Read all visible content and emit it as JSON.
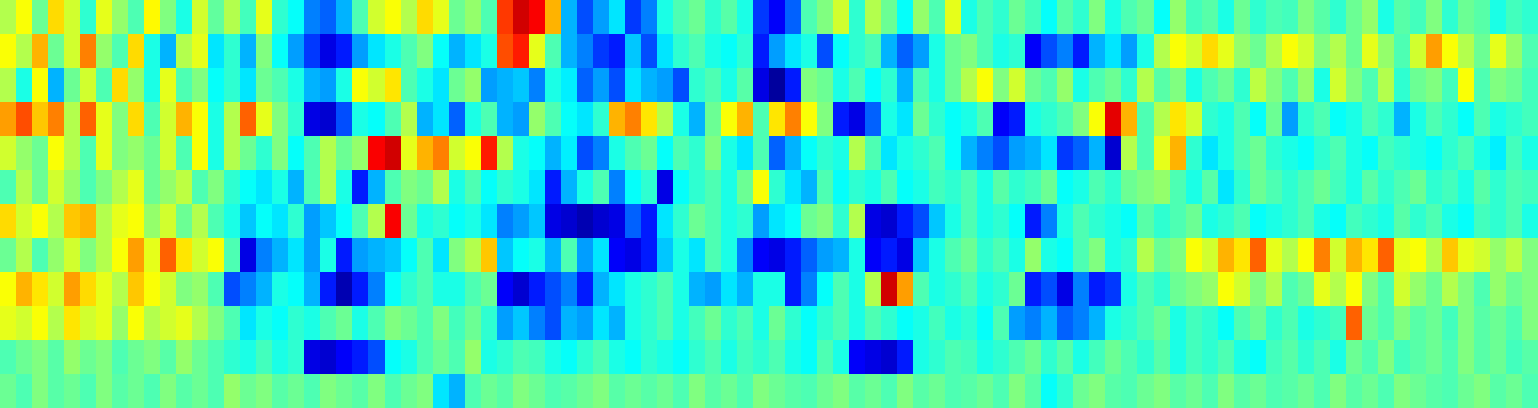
{
  "chart_data": {
    "type": "heatmap",
    "tick_labels": false,
    "zlim": [
      0,
      100
    ],
    "cells": [
      [
        55,
        62,
        48,
        66,
        58,
        42,
        60,
        52,
        45,
        63,
        50,
        40,
        58,
        47,
        55,
        44,
        60,
        42,
        38,
        25,
        22,
        30,
        45,
        58,
        62,
        55,
        66,
        60,
        48,
        52,
        45,
        82,
        92,
        88,
        70,
        30,
        20,
        28,
        35,
        18,
        25,
        40,
        45,
        48,
        42,
        46,
        40,
        18,
        12,
        22,
        45,
        50,
        58,
        42,
        55,
        48,
        38,
        52,
        45,
        60,
        40,
        45,
        42,
        48,
        44,
        38,
        46,
        42,
        50,
        40,
        45,
        48,
        38,
        52,
        44,
        46,
        40,
        48,
        42,
        45,
        44,
        50,
        46,
        42,
        48,
        52,
        40,
        46,
        44,
        50,
        42,
        48,
        46,
        40,
        44,
        42
      ],
      [
        62,
        55,
        70,
        48,
        58,
        75,
        52,
        45,
        66,
        40,
        30,
        55,
        60,
        35,
        42,
        30,
        50,
        38,
        28,
        18,
        10,
        15,
        28,
        35,
        40,
        45,
        50,
        38,
        30,
        35,
        40,
        80,
        85,
        60,
        45,
        30,
        25,
        18,
        15,
        32,
        20,
        35,
        42,
        45,
        40,
        38,
        42,
        15,
        28,
        35,
        40,
        20,
        38,
        42,
        45,
        30,
        22,
        28,
        40,
        48,
        50,
        45,
        40,
        42,
        12,
        20,
        25,
        15,
        30,
        35,
        28,
        40,
        55,
        62,
        58,
        66,
        60,
        52,
        48,
        55,
        62,
        58,
        50,
        55,
        48,
        60,
        52,
        45,
        58,
        72,
        62,
        55,
        48,
        60,
        52,
        45
      ],
      [
        55,
        40,
        62,
        30,
        48,
        58,
        45,
        66,
        52,
        40,
        60,
        45,
        50,
        38,
        42,
        35,
        48,
        45,
        40,
        30,
        28,
        40,
        62,
        58,
        65,
        45,
        40,
        35,
        48,
        52,
        28,
        30,
        32,
        25,
        40,
        36,
        22,
        28,
        20,
        35,
        30,
        28,
        20,
        42,
        45,
        40,
        46,
        10,
        3,
        15,
        50,
        48,
        40,
        45,
        38,
        42,
        30,
        45,
        40,
        48,
        55,
        62,
        50,
        58,
        48,
        45,
        52,
        40,
        45,
        48,
        42,
        55,
        46,
        50,
        40,
        45,
        48,
        42,
        56,
        50,
        45,
        52,
        40,
        58,
        50,
        45,
        55,
        42,
        48,
        50,
        44,
        62,
        45,
        50,
        48,
        44
      ],
      [
        72,
        80,
        68,
        75,
        55,
        78,
        60,
        50,
        66,
        45,
        58,
        70,
        62,
        40,
        55,
        78,
        60,
        50,
        42,
        10,
        8,
        20,
        40,
        38,
        45,
        55,
        30,
        35,
        22,
        40,
        45,
        30,
        28,
        52,
        45,
        38,
        35,
        42,
        70,
        75,
        65,
        55,
        40,
        30,
        48,
        62,
        70,
        45,
        65,
        75,
        62,
        50,
        15,
        10,
        22,
        40,
        35,
        48,
        42,
        38,
        40,
        45,
        12,
        15,
        40,
        42,
        45,
        50,
        62,
        90,
        70,
        45,
        55,
        65,
        58,
        42,
        40,
        45,
        38,
        48,
        28,
        42,
        45,
        38,
        40,
        45,
        42,
        30,
        40,
        45,
        42,
        38,
        45,
        40,
        42,
        44
      ],
      [
        58,
        52,
        48,
        62,
        55,
        45,
        60,
        50,
        52,
        48,
        58,
        45,
        62,
        40,
        55,
        48,
        42,
        50,
        38,
        45,
        55,
        48,
        52,
        88,
        92,
        60,
        70,
        75,
        58,
        62,
        85,
        55,
        40,
        38,
        30,
        36,
        20,
        25,
        40,
        45,
        48,
        38,
        45,
        42,
        50,
        40,
        35,
        45,
        22,
        30,
        38,
        42,
        40,
        55,
        45,
        35,
        40,
        42,
        45,
        38,
        30,
        25,
        20,
        28,
        30,
        35,
        18,
        22,
        30,
        8,
        55,
        45,
        60,
        70,
        42,
        35,
        40,
        45,
        48,
        42,
        40,
        38,
        42,
        45,
        40,
        38,
        44,
        42,
        40,
        38,
        42,
        45,
        40,
        36,
        44,
        40
      ],
      [
        45,
        55,
        48,
        58,
        52,
        45,
        50,
        55,
        60,
        48,
        52,
        56,
        45,
        50,
        42,
        38,
        35,
        40,
        30,
        45,
        55,
        40,
        15,
        30,
        45,
        50,
        48,
        55,
        40,
        45,
        38,
        42,
        40,
        35,
        15,
        30,
        40,
        45,
        25,
        38,
        42,
        10,
        38,
        42,
        45,
        40,
        48,
        62,
        42,
        35,
        30,
        45,
        38,
        42,
        40,
        45,
        38,
        40,
        44,
        42,
        45,
        40,
        46,
        42,
        44,
        48,
        38,
        40,
        45,
        42,
        48,
        50,
        52,
        45,
        40,
        46,
        35,
        42,
        48,
        45,
        42,
        45,
        48,
        44,
        40,
        46,
        42,
        45,
        48,
        42,
        44,
        40,
        46,
        42,
        45,
        44
      ],
      [
        66,
        58,
        62,
        55,
        68,
        70,
        55,
        60,
        62,
        52,
        58,
        48,
        55,
        45,
        40,
        32,
        38,
        35,
        42,
        28,
        32,
        38,
        45,
        55,
        88,
        48,
        40,
        42,
        38,
        40,
        35,
        25,
        28,
        32,
        10,
        8,
        5,
        8,
        10,
        22,
        15,
        35,
        42,
        48,
        45,
        40,
        42,
        28,
        35,
        38,
        48,
        50,
        42,
        55,
        10,
        8,
        15,
        20,
        32,
        40,
        45,
        40,
        42,
        38,
        15,
        25,
        40,
        45,
        42,
        40,
        38,
        46,
        42,
        45,
        48,
        40,
        42,
        45,
        38,
        40,
        42,
        45,
        40,
        38,
        44,
        42,
        40,
        46,
        42,
        45,
        40,
        38,
        44,
        42,
        45,
        40
      ],
      [
        48,
        55,
        45,
        52,
        58,
        50,
        55,
        62,
        72,
        60,
        78,
        65,
        58,
        62,
        45,
        10,
        25,
        30,
        35,
        28,
        40,
        15,
        28,
        30,
        32,
        38,
        45,
        35,
        50,
        55,
        68,
        32,
        38,
        40,
        30,
        45,
        28,
        35,
        12,
        10,
        15,
        32,
        40,
        35,
        45,
        40,
        25,
        12,
        10,
        15,
        22,
        28,
        30,
        40,
        12,
        15,
        10,
        32,
        40,
        45,
        48,
        42,
        45,
        40,
        52,
        40,
        38,
        45,
        50,
        40,
        42,
        55,
        48,
        50,
        62,
        58,
        70,
        65,
        78,
        60,
        55,
        62,
        75,
        58,
        70,
        65,
        78,
        60,
        62,
        55,
        68,
        60,
        58,
        52,
        56,
        50
      ],
      [
        62,
        70,
        65,
        58,
        72,
        66,
        60,
        55,
        68,
        62,
        58,
        50,
        52,
        45,
        20,
        25,
        30,
        40,
        38,
        30,
        15,
        5,
        15,
        25,
        38,
        42,
        45,
        40,
        40,
        45,
        48,
        12,
        8,
        15,
        20,
        25,
        15,
        30,
        35,
        40,
        42,
        45,
        40,
        30,
        28,
        35,
        30,
        40,
        40,
        15,
        25,
        38,
        45,
        40,
        55,
        92,
        72,
        45,
        40,
        42,
        45,
        40,
        42,
        48,
        15,
        20,
        10,
        25,
        15,
        18,
        40,
        45,
        42,
        48,
        50,
        52,
        62,
        58,
        50,
        55,
        45,
        48,
        60,
        55,
        62,
        50,
        45,
        58,
        52,
        48,
        55,
        50,
        45,
        52,
        48,
        50
      ],
      [
        60,
        58,
        62,
        55,
        65,
        58,
        60,
        52,
        62,
        55,
        58,
        60,
        55,
        50,
        45,
        35,
        40,
        38,
        42,
        40,
        45,
        48,
        40,
        45,
        50,
        48,
        45,
        50,
        44,
        48,
        42,
        28,
        32,
        25,
        20,
        30,
        28,
        35,
        30,
        40,
        42,
        45,
        40,
        44,
        48,
        42,
        45,
        40,
        48,
        42,
        38,
        42,
        45,
        40,
        45,
        42,
        38,
        40,
        44,
        40,
        42,
        38,
        45,
        28,
        25,
        30,
        22,
        25,
        30,
        40,
        42,
        45,
        48,
        40,
        44,
        42,
        38,
        45,
        48,
        42,
        45,
        40,
        42,
        44,
        78,
        48,
        45,
        50,
        46,
        48,
        44,
        50,
        46,
        48,
        45,
        50
      ],
      [
        45,
        48,
        50,
        46,
        52,
        48,
        50,
        45,
        48,
        50,
        46,
        52,
        48,
        45,
        42,
        40,
        44,
        40,
        42,
        10,
        8,
        12,
        15,
        20,
        38,
        40,
        45,
        48,
        45,
        52,
        40,
        42,
        45,
        44,
        40,
        38,
        42,
        45,
        40,
        38,
        42,
        40,
        38,
        42,
        45,
        40,
        44,
        42,
        45,
        40,
        38,
        45,
        40,
        12,
        10,
        8,
        15,
        40,
        42,
        45,
        44,
        40,
        42,
        45,
        48,
        42,
        46,
        40,
        44,
        48,
        45,
        42,
        46,
        40,
        44,
        42,
        45,
        40,
        38,
        44,
        46,
        42,
        45,
        40,
        48,
        45,
        50,
        44,
        46,
        48,
        45,
        50,
        46,
        48,
        44,
        46
      ],
      [
        48,
        45,
        50,
        46,
        48,
        45,
        50,
        46,
        48,
        45,
        50,
        46,
        48,
        45,
        52,
        48,
        50,
        46,
        48,
        45,
        50,
        48,
        46,
        50,
        45,
        48,
        50,
        35,
        30,
        45,
        48,
        46,
        50,
        48,
        45,
        46,
        48,
        50,
        46,
        48,
        46,
        48,
        45,
        50,
        46,
        48,
        45,
        50,
        48,
        46,
        45,
        48,
        50,
        46,
        48,
        45,
        50,
        46,
        48,
        45,
        46,
        48,
        45,
        50,
        46,
        38,
        42,
        48,
        50,
        46,
        45,
        48,
        50,
        46,
        48,
        45,
        50,
        46,
        48,
        45,
        46,
        48,
        45,
        50,
        46,
        48,
        45,
        50,
        48,
        46,
        45,
        48,
        50,
        46,
        48,
        45
      ]
    ]
  }
}
